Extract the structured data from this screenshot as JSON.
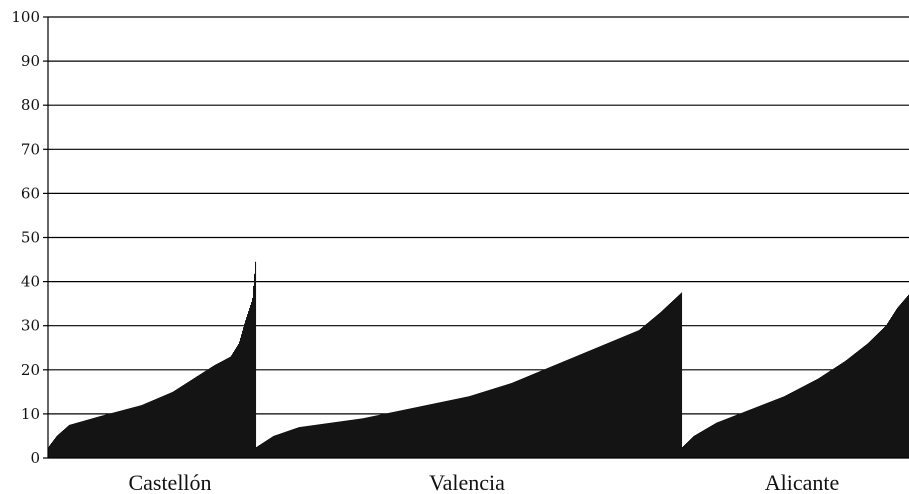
{
  "chart_data": {
    "type": "bar",
    "title": "",
    "xlabel": "",
    "ylabel": "",
    "ylim": [
      0,
      100
    ],
    "yticks": [
      0,
      10,
      20,
      30,
      40,
      50,
      60,
      70,
      80,
      90,
      100
    ],
    "grid": true,
    "bar_color": "#141414",
    "groups": [
      {
        "label": "Castellón",
        "keypoints": [
          [
            0,
            2.5
          ],
          [
            0.04,
            5
          ],
          [
            0.1,
            7.5
          ],
          [
            0.25,
            9.5
          ],
          [
            0.45,
            12
          ],
          [
            0.6,
            15
          ],
          [
            0.7,
            18
          ],
          [
            0.8,
            21
          ],
          [
            0.88,
            23
          ],
          [
            0.92,
            26
          ],
          [
            0.95,
            31
          ],
          [
            0.985,
            36
          ],
          [
            1.0,
            44.5
          ]
        ]
      },
      {
        "label": "Valencia",
        "keypoints": [
          [
            0,
            2.5
          ],
          [
            0.04,
            5
          ],
          [
            0.1,
            7
          ],
          [
            0.25,
            9
          ],
          [
            0.35,
            11
          ],
          [
            0.5,
            14
          ],
          [
            0.6,
            17
          ],
          [
            0.7,
            21
          ],
          [
            0.8,
            25
          ],
          [
            0.9,
            29
          ],
          [
            0.95,
            33
          ],
          [
            1.0,
            37.5
          ]
        ]
      },
      {
        "label": "Alicante",
        "keypoints": [
          [
            0,
            2.5
          ],
          [
            0.05,
            5
          ],
          [
            0.15,
            8
          ],
          [
            0.3,
            11
          ],
          [
            0.45,
            14
          ],
          [
            0.6,
            18
          ],
          [
            0.72,
            22
          ],
          [
            0.82,
            26
          ],
          [
            0.9,
            30
          ],
          [
            0.95,
            34
          ],
          [
            1.0,
            37
          ]
        ]
      }
    ]
  }
}
